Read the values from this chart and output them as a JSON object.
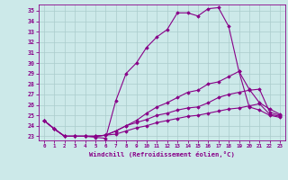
{
  "xlabel": "Windchill (Refroidissement éolien,°C)",
  "background_color": "#cce9e9",
  "grid_color": "#aacccc",
  "line_color": "#880088",
  "x_ticks": [
    0,
    1,
    2,
    3,
    4,
    5,
    6,
    7,
    8,
    9,
    10,
    11,
    12,
    13,
    14,
    15,
    16,
    17,
    18,
    19,
    20,
    21,
    22,
    23
  ],
  "y_ticks": [
    23,
    24,
    25,
    26,
    27,
    28,
    29,
    30,
    31,
    32,
    33,
    34,
    35
  ],
  "ylim": [
    22.6,
    35.6
  ],
  "xlim": [
    -0.5,
    23.5
  ],
  "series": [
    [
      24.5,
      23.7,
      23.0,
      23.0,
      23.0,
      22.9,
      22.8,
      26.4,
      29.0,
      30.0,
      31.5,
      32.5,
      33.2,
      34.8,
      34.8,
      34.5,
      35.2,
      35.3,
      33.5,
      29.2,
      25.8,
      25.5,
      25.0,
      24.8
    ],
    [
      24.5,
      23.7,
      23.0,
      23.0,
      23.0,
      23.0,
      23.1,
      23.5,
      24.0,
      24.5,
      25.2,
      25.8,
      26.2,
      26.7,
      27.2,
      27.4,
      28.0,
      28.2,
      28.7,
      29.2,
      27.5,
      26.2,
      25.6,
      25.1
    ],
    [
      24.5,
      23.7,
      23.0,
      23.0,
      23.0,
      23.0,
      23.1,
      23.5,
      24.0,
      24.3,
      24.6,
      25.0,
      25.2,
      25.5,
      25.7,
      25.8,
      26.2,
      26.7,
      27.0,
      27.2,
      27.4,
      27.5,
      25.3,
      25.0
    ],
    [
      24.5,
      23.7,
      23.0,
      23.0,
      23.0,
      23.0,
      23.1,
      23.2,
      23.5,
      23.8,
      24.0,
      24.3,
      24.5,
      24.7,
      24.9,
      25.0,
      25.2,
      25.4,
      25.6,
      25.7,
      25.9,
      26.1,
      25.1,
      24.9
    ]
  ]
}
